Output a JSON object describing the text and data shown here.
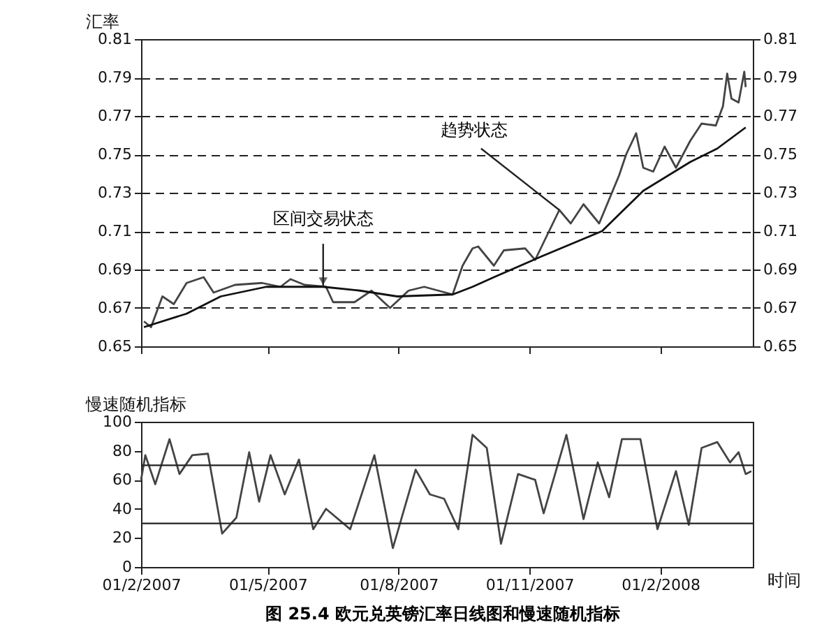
{
  "chart_data": [
    {
      "type": "line",
      "ylabel": "汇率",
      "xlim": [
        "2007-02-01",
        "2008-04-06"
      ],
      "ylim": [
        0.65,
        0.81
      ],
      "yticks": [
        0.65,
        0.67,
        0.69,
        0.71,
        0.73,
        0.75,
        0.77,
        0.79,
        0.81
      ],
      "y2lim": [
        0.65,
        0.81
      ],
      "y2ticks": [
        0.65,
        0.67,
        0.69,
        0.71,
        0.73,
        0.75,
        0.77,
        0.79,
        0.81
      ],
      "xticks": [
        {
          "value": "2007-02-01",
          "label": null
        },
        {
          "value": "2007-05-01",
          "label": null
        },
        {
          "value": "2007-08-01",
          "label": null
        },
        {
          "value": "2007-11-01",
          "label": null
        },
        {
          "value": "2008-02-01",
          "label": null
        }
      ],
      "tick_labels": "y",
      "grid": "y",
      "annotations": [
        {
          "text": "区间交易状态",
          "x": "2007-06-09",
          "y": 0.681
        },
        {
          "text": "趋势状态",
          "x": "2007-11-22",
          "y": 0.721
        }
      ],
      "series": [
        {
          "color": "#444444",
          "x": [
            "2007-02-03",
            "2007-02-08",
            "2007-02-16",
            "2007-02-24",
            "2007-03-05",
            "2007-03-17",
            "2007-03-24",
            "2007-04-08",
            "2007-04-27",
            "2007-05-10",
            "2007-05-17",
            "2007-05-27",
            "2007-06-11",
            "2007-06-16",
            "2007-07-01",
            "2007-07-13",
            "2007-07-26",
            "2007-08-08",
            "2007-08-19",
            "2007-09-08",
            "2007-09-15",
            "2007-09-22",
            "2007-09-26",
            "2007-10-07",
            "2007-10-14",
            "2007-10-29",
            "2007-11-05",
            "2007-11-22",
            "2007-11-30",
            "2007-12-09",
            "2007-12-20",
            "2008-01-03",
            "2008-01-08",
            "2008-01-15",
            "2008-01-20",
            "2008-01-27",
            "2008-02-04",
            "2008-02-12",
            "2008-02-22",
            "2008-03-01",
            "2008-03-11",
            "2008-03-16",
            "2008-03-19",
            "2008-03-22",
            "2008-03-27",
            "2008-03-31",
            "2008-04-01"
          ],
          "values": [
            0.663,
            0.66,
            0.676,
            0.672,
            0.683,
            0.686,
            0.678,
            0.682,
            0.683,
            0.681,
            0.685,
            0.682,
            0.681,
            0.673,
            0.673,
            0.679,
            0.67,
            0.679,
            0.681,
            0.677,
            0.692,
            0.701,
            0.702,
            0.692,
            0.7,
            0.701,
            0.695,
            0.721,
            0.714,
            0.724,
            0.714,
            0.739,
            0.75,
            0.761,
            0.743,
            0.741,
            0.754,
            0.743,
            0.757,
            0.766,
            0.765,
            0.775,
            0.792,
            0.779,
            0.777,
            0.793,
            0.785
          ]
        },
        {
          "color": "#111111",
          "x": [
            "2007-02-03",
            "2007-03-05",
            "2007-03-29",
            "2007-04-30",
            "2007-06-09",
            "2007-07-05",
            "2007-07-31",
            "2007-09-08",
            "2007-09-22",
            "2007-10-07",
            "2007-11-10",
            "2007-12-22",
            "2008-01-20",
            "2008-02-22",
            "2008-03-12",
            "2008-04-01"
          ],
          "values": [
            0.66,
            0.667,
            0.676,
            0.681,
            0.681,
            0.679,
            0.676,
            0.677,
            0.681,
            0.686,
            0.697,
            0.71,
            0.731,
            0.746,
            0.753,
            0.764
          ]
        }
      ]
    },
    {
      "type": "line",
      "ylabel": "慢速随机指标",
      "xlabel": "时间",
      "xlim": [
        "2007-02-01",
        "2008-04-06"
      ],
      "ylim": [
        0,
        100
      ],
      "yticks": [
        0,
        20,
        40,
        60,
        80,
        100
      ],
      "xticks": [
        {
          "value": "2007-02-01",
          "label": "01/2/2007"
        },
        {
          "value": "2007-05-01",
          "label": "01/5/2007"
        },
        {
          "value": "2007-08-01",
          "label": "01/8/2007"
        },
        {
          "value": "2007-11-01",
          "label": "01/11/2007"
        },
        {
          "value": "2008-02-01",
          "label": "01/2/2008"
        }
      ],
      "grid": false,
      "ref_lines": [
        {
          "axis": "y",
          "value": 70,
          "color": "#222222"
        },
        {
          "axis": "y",
          "value": 30,
          "color": "#222222"
        }
      ],
      "annotations": [
        "图 25.4   欧元兑英镑汇率日线图和慢速随机指标"
      ],
      "series": [
        {
          "color": "#444444",
          "x": [
            "2007-02-01",
            "2007-02-04",
            "2007-02-11",
            "2007-02-21",
            "2007-02-28",
            "2007-03-09",
            "2007-03-20",
            "2007-03-30",
            "2007-04-09",
            "2007-04-18",
            "2007-04-25",
            "2007-05-03",
            "2007-05-13",
            "2007-05-23",
            "2007-06-02",
            "2007-06-11",
            "2007-06-28",
            "2007-07-15",
            "2007-07-28",
            "2007-08-13",
            "2007-08-23",
            "2007-09-02",
            "2007-09-12",
            "2007-09-22",
            "2007-10-02",
            "2007-10-12",
            "2007-10-24",
            "2007-11-05",
            "2007-11-11",
            "2007-11-27",
            "2007-12-09",
            "2007-12-19",
            "2007-12-27",
            "2008-01-05",
            "2008-01-18",
            "2008-01-30",
            "2008-02-12",
            "2008-02-21",
            "2008-03-01",
            "2008-03-12",
            "2008-03-21",
            "2008-03-27",
            "2008-04-01",
            "2008-04-05"
          ],
          "values": [
            60,
            77,
            57,
            88,
            64,
            77,
            78,
            23,
            34,
            79,
            45,
            77,
            50,
            74,
            26,
            40,
            26,
            77,
            13,
            67,
            50,
            47,
            26,
            91,
            82,
            16,
            64,
            60,
            37,
            91,
            33,
            72,
            48,
            88,
            88,
            26,
            66,
            29,
            82,
            86,
            72,
            79,
            64,
            66
          ]
        }
      ]
    }
  ]
}
